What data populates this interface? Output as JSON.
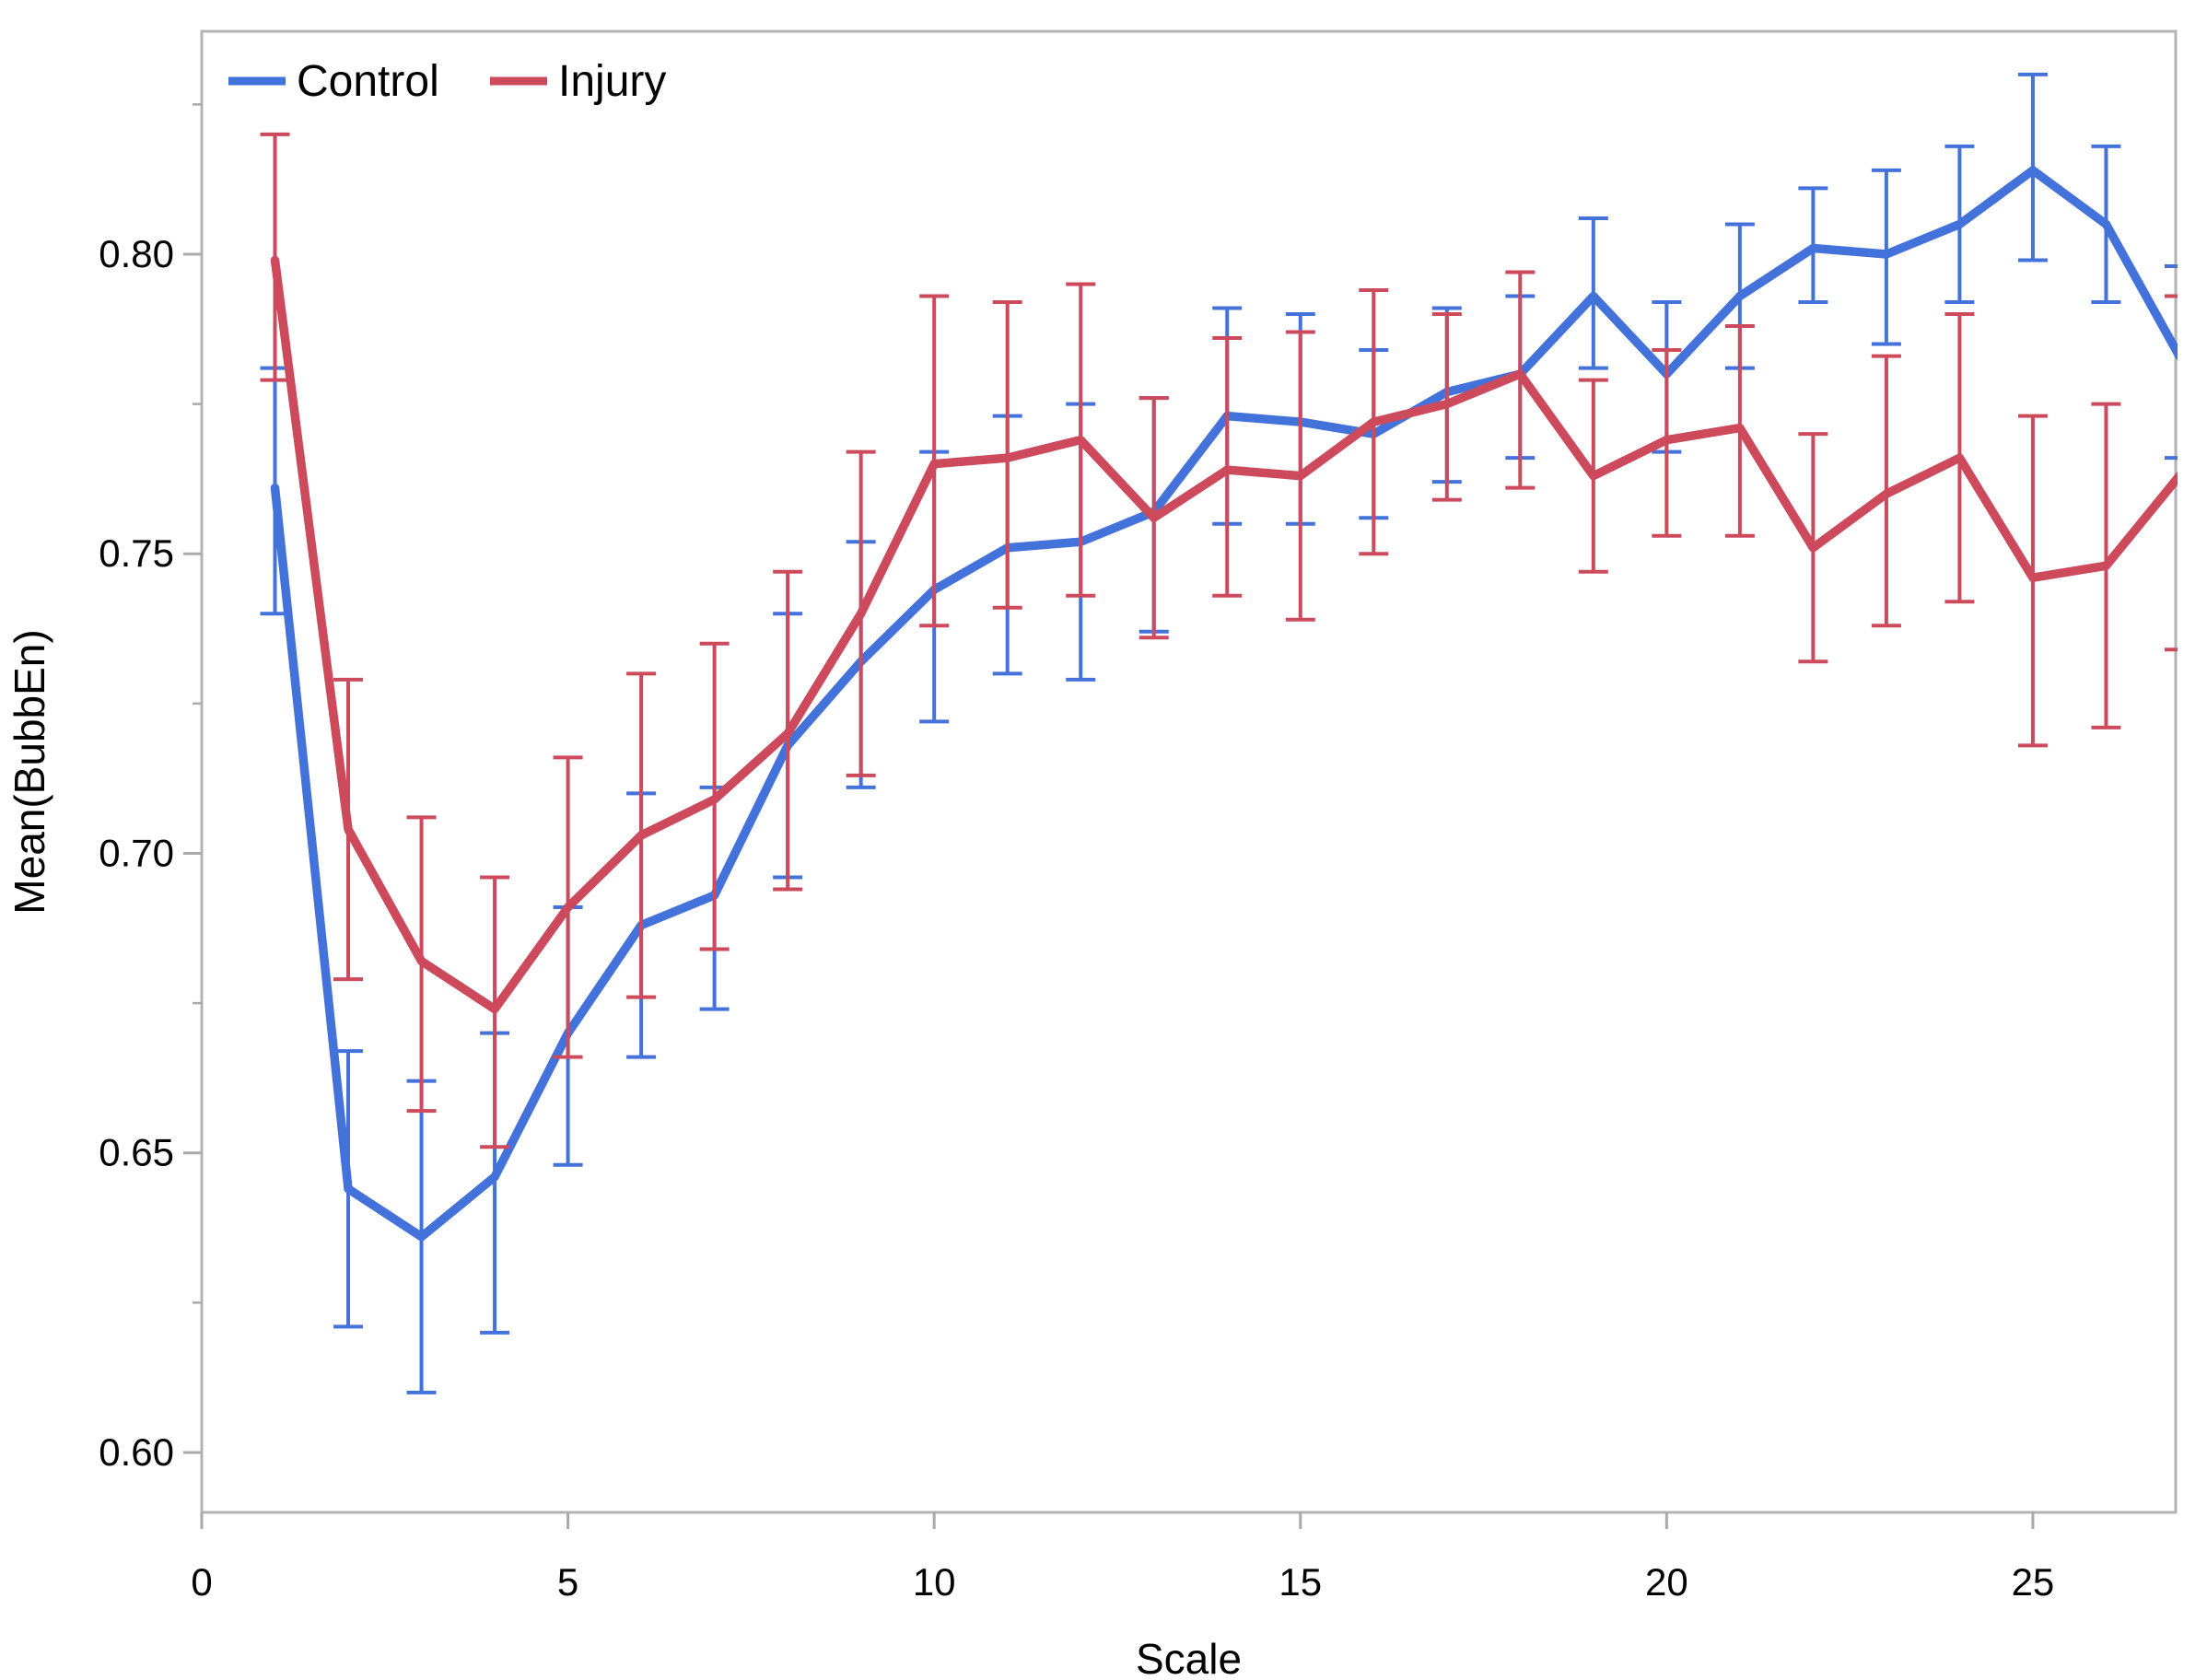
{
  "figure": {
    "background": "#ffffff",
    "frame_color": "#b3b3b3",
    "tick_color": "#a9a9a9"
  },
  "legend": {
    "position": "top-left",
    "items": [
      {
        "label": "Control",
        "color": "#4472db"
      },
      {
        "label": "Injury",
        "color": "#cd4a5c"
      }
    ]
  },
  "chart_data": {
    "type": "line",
    "title": "",
    "xlabel": "Scale",
    "ylabel": "Mean(BubbEn)",
    "xlim": [
      0,
      26.95
    ],
    "ylim": [
      0.59,
      0.8372
    ],
    "grid": false,
    "error_bars": true,
    "legend_position": "top-left",
    "x_ticks": [
      0,
      5,
      10,
      15,
      20,
      25
    ],
    "x_tick_labels": [
      "0",
      "5",
      "10",
      "15",
      "20",
      "25"
    ],
    "y_ticks": [
      0.6,
      0.65,
      0.7,
      0.75,
      0.8
    ],
    "y_tick_labels": [
      "0.60",
      "0.65",
      "0.70",
      "0.75",
      "0.80"
    ],
    "y_minor_ticks": [
      0.625,
      0.675,
      0.725,
      0.775,
      0.825
    ],
    "x": [
      1,
      2,
      3,
      4,
      5,
      6,
      7,
      8,
      9,
      10,
      11,
      12,
      13,
      14,
      15,
      16,
      17,
      18,
      19,
      20,
      21,
      22,
      23,
      24,
      25,
      26,
      27
    ],
    "series": [
      {
        "name": "Control",
        "color": "#4472db",
        "values": [
          0.761,
          0.644,
          0.636,
          0.646,
          0.67,
          0.688,
          0.693,
          0.718,
          0.732,
          0.744,
          0.751,
          0.752,
          0.757,
          0.773,
          0.772,
          0.77,
          0.777,
          0.78,
          0.793,
          0.78,
          0.793,
          0.801,
          0.8,
          0.805,
          0.814,
          0.805,
          0.783
        ],
        "err_high": [
          0.781,
          0.667,
          0.662,
          0.67,
          0.691,
          0.71,
          0.711,
          0.74,
          0.752,
          0.767,
          0.773,
          0.775,
          0.776,
          0.791,
          0.79,
          0.784,
          0.791,
          0.793,
          0.806,
          0.792,
          0.805,
          0.811,
          0.814,
          0.818,
          0.83,
          0.818,
          0.798
        ],
        "err_low": [
          0.74,
          0.621,
          0.61,
          0.62,
          0.648,
          0.666,
          0.674,
          0.696,
          0.711,
          0.722,
          0.73,
          0.729,
          0.737,
          0.755,
          0.755,
          0.756,
          0.762,
          0.766,
          0.781,
          0.767,
          0.781,
          0.792,
          0.785,
          0.792,
          0.799,
          0.792,
          0.766
        ]
      },
      {
        "name": "Injury",
        "color": "#cd4a5c",
        "values": [
          0.799,
          0.704,
          0.682,
          0.674,
          0.691,
          0.703,
          0.709,
          0.72,
          0.74,
          0.765,
          0.766,
          0.769,
          0.756,
          0.764,
          0.763,
          0.772,
          0.775,
          0.78,
          0.763,
          0.769,
          0.771,
          0.751,
          0.76,
          0.766,
          0.746,
          0.748,
          0.763
        ],
        "err_high": [
          0.82,
          0.729,
          0.706,
          0.696,
          0.716,
          0.73,
          0.735,
          0.747,
          0.767,
          0.793,
          0.792,
          0.795,
          0.776,
          0.786,
          0.787,
          0.794,
          0.79,
          0.797,
          0.779,
          0.784,
          0.788,
          0.77,
          0.783,
          0.79,
          0.773,
          0.775,
          0.793
        ],
        "err_low": [
          0.779,
          0.679,
          0.657,
          0.651,
          0.666,
          0.676,
          0.684,
          0.694,
          0.713,
          0.738,
          0.741,
          0.743,
          0.736,
          0.743,
          0.739,
          0.75,
          0.759,
          0.761,
          0.747,
          0.753,
          0.753,
          0.732,
          0.738,
          0.742,
          0.718,
          0.721,
          0.734
        ]
      }
    ]
  }
}
